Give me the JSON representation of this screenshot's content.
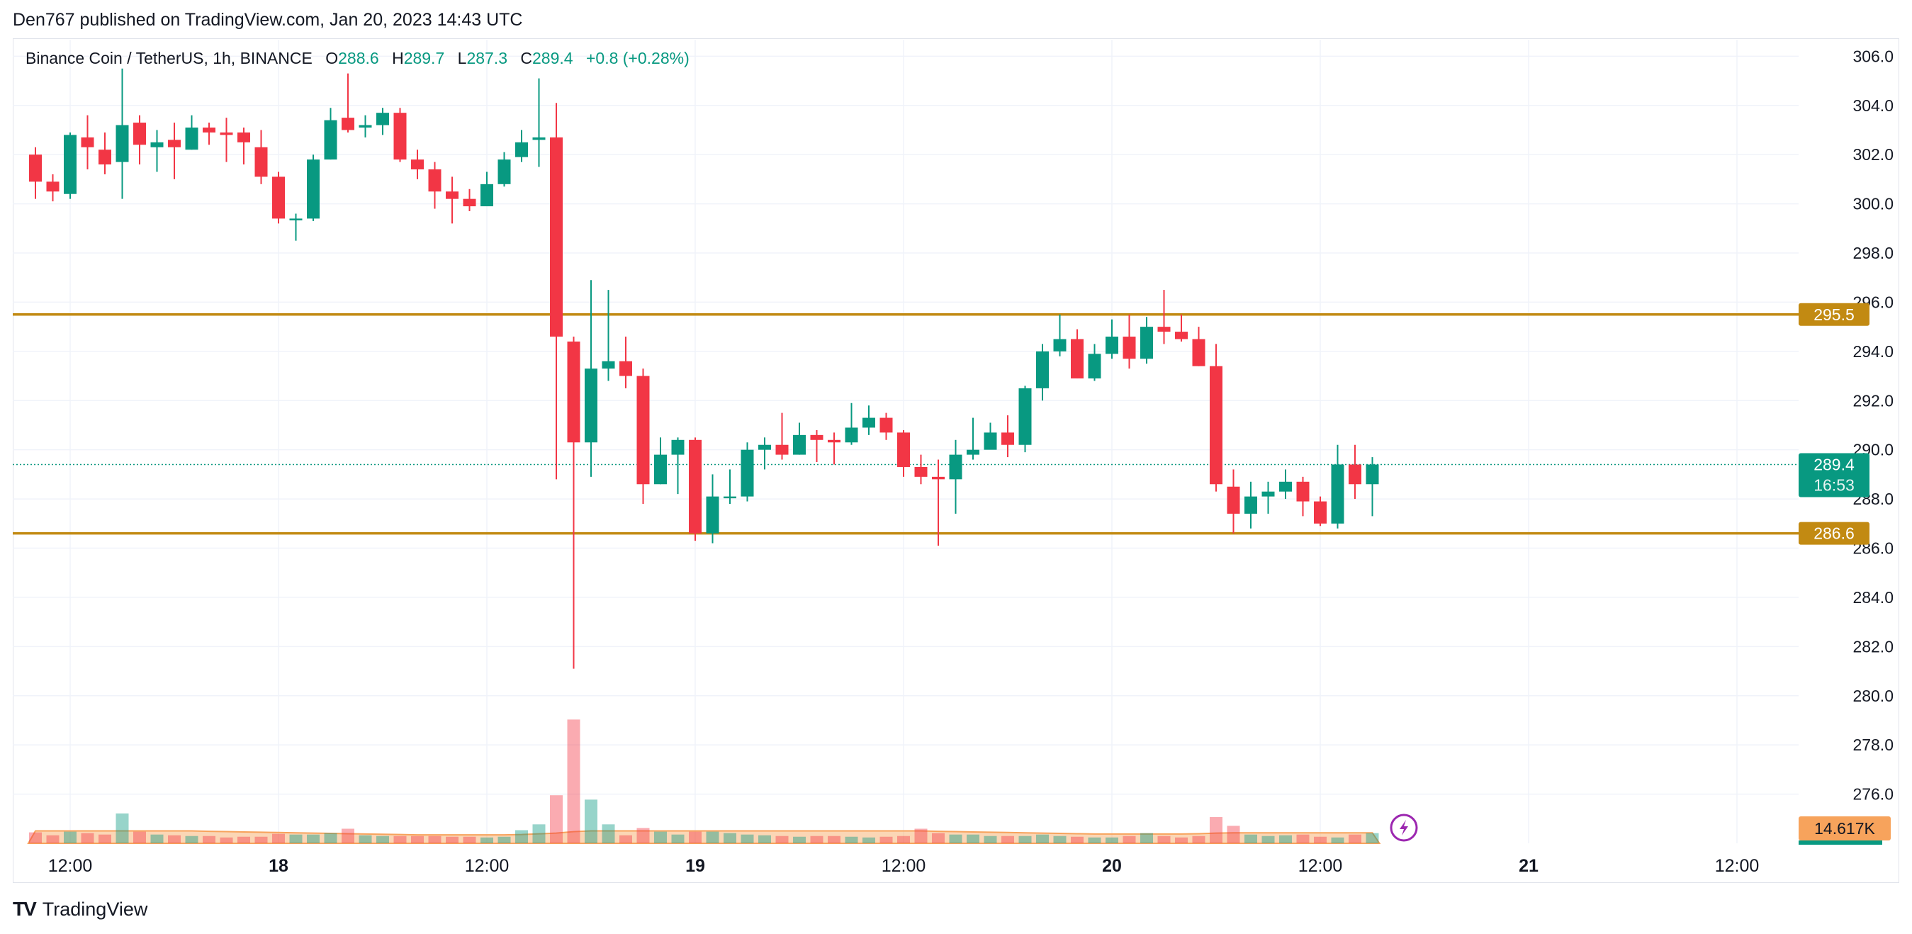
{
  "header": {
    "text": "Den767 published on TradingView.com, Jan 20, 2023 14:43 UTC"
  },
  "legend": {
    "symbol": "Binance Coin / TetherUS, 1h, BINANCE",
    "open_label": "O",
    "open": "288.6",
    "high_label": "H",
    "high": "289.7",
    "low_label": "L",
    "low": "287.3",
    "close_label": "C",
    "close": "289.4",
    "change": "+0.8 (+0.28%)"
  },
  "footer": {
    "brand": "TradingView",
    "logo_text": "TV"
  },
  "colors": {
    "up": "#089981",
    "down": "#f23645",
    "level": "#c28a12",
    "grid": "#f0f3fa",
    "volume_ma": "#f7a35c"
  },
  "chart_data": {
    "type": "candlestick",
    "title": "Binance Coin / TetherUS, 1h, BINANCE",
    "ylim": [
      274.0,
      306.5
    ],
    "y_ticks": [
      "306.0",
      "304.0",
      "302.0",
      "300.0",
      "298.0",
      "296.0",
      "294.0",
      "292.0",
      "290.0",
      "288.0",
      "286.0",
      "284.0",
      "282.0",
      "280.0",
      "278.0",
      "276.0"
    ],
    "x_ticks": [
      {
        "label": "12:00",
        "hour": 0
      },
      {
        "label": "18",
        "hour": 12
      },
      {
        "label": "12:00",
        "hour": 24
      },
      {
        "label": "19",
        "hour": 36
      },
      {
        "label": "12:00",
        "hour": 48
      },
      {
        "label": "20",
        "hour": 60
      },
      {
        "label": "12:00",
        "hour": 72
      },
      {
        "label": "21",
        "hour": 84
      },
      {
        "label": "12:00",
        "hour": 96
      }
    ],
    "horizontal_levels": [
      {
        "value": 295.5,
        "label": "295.5"
      },
      {
        "value": 286.6,
        "label": "286.6"
      }
    ],
    "current_price": {
      "value": 289.4,
      "label": "289.4",
      "countdown": "16:53"
    },
    "volume_label": "14.617K",
    "candles": [
      [
        302.0,
        300.9,
        302.3,
        300.2
      ],
      [
        300.9,
        300.5,
        301.2,
        300.1
      ],
      [
        300.4,
        302.8,
        302.9,
        300.2
      ],
      [
        302.7,
        302.3,
        303.6,
        301.4
      ],
      [
        302.2,
        301.6,
        302.9,
        301.2
      ],
      [
        301.7,
        303.2,
        305.5,
        300.2
      ],
      [
        303.3,
        302.4,
        303.6,
        301.6
      ],
      [
        302.3,
        302.5,
        303.0,
        301.3
      ],
      [
        302.6,
        302.3,
        303.3,
        301.0
      ],
      [
        302.2,
        303.1,
        303.6,
        302.2
      ],
      [
        303.1,
        302.9,
        303.3,
        302.4
      ],
      [
        302.9,
        302.8,
        303.5,
        301.7
      ],
      [
        302.9,
        302.5,
        303.1,
        301.6
      ],
      [
        302.3,
        301.1,
        303.0,
        300.8
      ],
      [
        301.1,
        299.4,
        301.3,
        299.2
      ],
      [
        299.4,
        299.4,
        299.6,
        298.5
      ],
      [
        299.4,
        301.8,
        302.0,
        299.3
      ],
      [
        301.8,
        303.4,
        303.9,
        301.8
      ],
      [
        303.5,
        303.0,
        305.3,
        302.9
      ],
      [
        303.1,
        303.2,
        303.6,
        302.7
      ],
      [
        303.2,
        303.7,
        303.9,
        302.8
      ],
      [
        303.7,
        301.8,
        303.9,
        301.7
      ],
      [
        301.8,
        301.4,
        302.2,
        301.0
      ],
      [
        301.4,
        300.5,
        301.7,
        299.8
      ],
      [
        300.5,
        300.2,
        301.1,
        299.2
      ],
      [
        300.2,
        299.9,
        300.6,
        299.7
      ],
      [
        299.9,
        300.8,
        301.3,
        300.0
      ],
      [
        300.8,
        301.8,
        302.1,
        300.7
      ],
      [
        301.9,
        302.5,
        303.0,
        301.7
      ],
      [
        302.6,
        302.7,
        305.1,
        301.5
      ],
      [
        302.7,
        294.6,
        304.1,
        288.8
      ],
      [
        294.4,
        290.3,
        294.6,
        281.1
      ],
      [
        290.3,
        293.3,
        296.9,
        288.9
      ],
      [
        293.3,
        293.6,
        296.5,
        292.8
      ],
      [
        293.6,
        293.0,
        294.6,
        292.5
      ],
      [
        293.0,
        288.6,
        293.3,
        287.8
      ],
      [
        288.6,
        289.8,
        290.5,
        288.6
      ],
      [
        289.8,
        290.4,
        290.5,
        288.2
      ],
      [
        290.4,
        286.6,
        290.5,
        286.3
      ],
      [
        286.6,
        288.1,
        289.0,
        286.2
      ],
      [
        288.1,
        288.1,
        289.2,
        287.8
      ],
      [
        288.1,
        290.0,
        290.3,
        287.9
      ],
      [
        290.0,
        290.2,
        290.5,
        289.2
      ],
      [
        290.2,
        289.8,
        291.5,
        289.6
      ],
      [
        289.8,
        290.6,
        291.1,
        289.8
      ],
      [
        290.6,
        290.4,
        290.8,
        289.5
      ],
      [
        290.4,
        290.3,
        290.7,
        289.4
      ],
      [
        290.3,
        290.9,
        291.9,
        290.2
      ],
      [
        290.9,
        291.3,
        291.8,
        290.6
      ],
      [
        291.3,
        290.7,
        291.5,
        290.4
      ],
      [
        290.7,
        289.3,
        290.8,
        288.9
      ],
      [
        289.3,
        288.9,
        289.8,
        288.6
      ],
      [
        288.9,
        288.8,
        289.6,
        286.1
      ],
      [
        288.8,
        289.8,
        290.4,
        287.4
      ],
      [
        289.8,
        290.0,
        291.3,
        289.6
      ],
      [
        290.0,
        290.7,
        291.1,
        290.1
      ],
      [
        290.7,
        290.2,
        291.4,
        289.7
      ],
      [
        290.2,
        292.5,
        292.6,
        289.9
      ],
      [
        292.5,
        294.0,
        294.3,
        292.0
      ],
      [
        294.0,
        294.5,
        295.5,
        293.8
      ],
      [
        294.5,
        292.9,
        294.9,
        292.9
      ],
      [
        292.9,
        293.9,
        294.3,
        292.8
      ],
      [
        293.9,
        294.6,
        295.3,
        293.7
      ],
      [
        294.6,
        293.7,
        295.5,
        293.3
      ],
      [
        293.7,
        295.0,
        295.4,
        293.5
      ],
      [
        295.0,
        294.8,
        296.5,
        294.3
      ],
      [
        294.8,
        294.5,
        295.5,
        294.4
      ],
      [
        294.5,
        293.4,
        295.0,
        293.4
      ],
      [
        293.4,
        288.6,
        294.3,
        288.3
      ],
      [
        288.5,
        287.4,
        289.2,
        286.6
      ],
      [
        287.4,
        288.1,
        288.7,
        286.8
      ],
      [
        288.1,
        288.3,
        288.7,
        287.4
      ],
      [
        288.3,
        288.7,
        289.2,
        288.0
      ],
      [
        288.7,
        287.9,
        288.9,
        287.3
      ],
      [
        287.9,
        287.0,
        288.1,
        286.9
      ],
      [
        287.0,
        289.4,
        290.2,
        286.8
      ],
      [
        289.4,
        288.6,
        290.2,
        288.0
      ],
      [
        288.6,
        289.4,
        289.7,
        287.3
      ]
    ],
    "volume_scale_max": 14.6,
    "volumes": [
      0.75,
      0.55,
      0.8,
      0.7,
      0.6,
      2.05,
      0.8,
      0.6,
      0.55,
      0.5,
      0.5,
      0.4,
      0.45,
      0.45,
      0.65,
      0.6,
      0.6,
      0.7,
      1.0,
      0.55,
      0.5,
      0.5,
      0.5,
      0.5,
      0.45,
      0.45,
      0.4,
      0.45,
      0.9,
      1.3,
      3.3,
      8.5,
      3.0,
      1.3,
      0.55,
      1.05,
      0.8,
      0.6,
      0.8,
      0.8,
      0.7,
      0.6,
      0.55,
      0.5,
      0.45,
      0.5,
      0.5,
      0.45,
      0.4,
      0.45,
      0.5,
      1.0,
      0.7,
      0.6,
      0.6,
      0.5,
      0.5,
      0.5,
      0.6,
      0.5,
      0.45,
      0.4,
      0.4,
      0.5,
      0.7,
      0.5,
      0.4,
      0.5,
      1.8,
      1.2,
      0.6,
      0.5,
      0.55,
      0.6,
      0.45,
      0.4,
      0.6,
      0.7
    ],
    "volume_ma": [
      0.85,
      0.85,
      0.85,
      0.85,
      0.85,
      0.85,
      0.85,
      0.85,
      0.85,
      0.85,
      0.82,
      0.8,
      0.78,
      0.76,
      0.74,
      0.72,
      0.7,
      0.68,
      0.66,
      0.64,
      0.62,
      0.6,
      0.58,
      0.58,
      0.58,
      0.58,
      0.58,
      0.58,
      0.6,
      0.65,
      0.7,
      0.8,
      0.85,
      0.85,
      0.85,
      0.85,
      0.85,
      0.85,
      0.85,
      0.85,
      0.85,
      0.85,
      0.85,
      0.85,
      0.85,
      0.85,
      0.85,
      0.85,
      0.85,
      0.85,
      0.85,
      0.85,
      0.82,
      0.8,
      0.78,
      0.76,
      0.74,
      0.72,
      0.7,
      0.68,
      0.66,
      0.64,
      0.64,
      0.64,
      0.64,
      0.64,
      0.64,
      0.66,
      0.7,
      0.72,
      0.72,
      0.72,
      0.72,
      0.72,
      0.72,
      0.72,
      0.72,
      0.72
    ]
  }
}
